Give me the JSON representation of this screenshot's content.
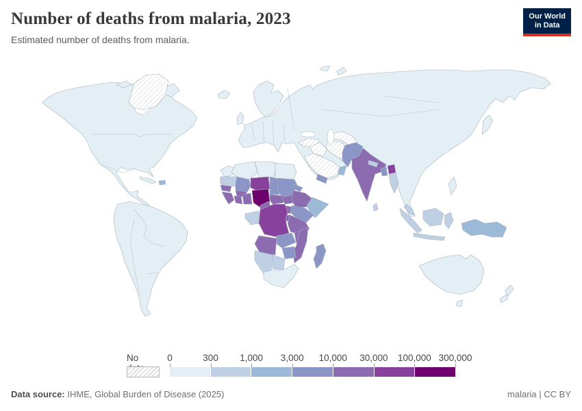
{
  "header": {
    "title": "Number of deaths from malaria, 2023",
    "subtitle": "Estimated number of deaths from malaria.",
    "logo": {
      "line1": "Our World",
      "line2": "in Data",
      "bg_color": "#002147",
      "accent_color": "#d7301f"
    }
  },
  "chart_data": {
    "type": "choropleth",
    "title": "Number of deaths from malaria, 2023",
    "subtitle": "Estimated number of deaths from malaria.",
    "year": "2023",
    "legend": {
      "no_data_label": "No data",
      "bin_edge_labels": [
        "0",
        "300",
        "1,000",
        "3,000",
        "10,000",
        "30,000",
        "100,000",
        "300,000"
      ],
      "bin_colors": [
        "#e3eef5",
        "#c0d0e4",
        "#9db9d8",
        "#8c96c6",
        "#8c6bb1",
        "#88419d",
        "#6e016b"
      ],
      "no_data_fill": "hatched-white",
      "position": "bottom"
    },
    "regions": [
      {
        "id": "north-america",
        "bin": 1
      },
      {
        "id": "greenland",
        "bin": "nd"
      },
      {
        "id": "canadian-arctic-islands",
        "bin": 1
      },
      {
        "id": "cuba",
        "bin": 1
      },
      {
        "id": "haiti",
        "bin": 3
      },
      {
        "id": "south-america",
        "bin": 1
      },
      {
        "id": "iceland",
        "bin": 1
      },
      {
        "id": "united-kingdom",
        "bin": 1
      },
      {
        "id": "scandinavia",
        "bin": 1
      },
      {
        "id": "eurasia",
        "bin": 1
      },
      {
        "id": "svalbard",
        "bin": 1
      },
      {
        "id": "novaya-zemlya",
        "bin": 1
      },
      {
        "id": "japan",
        "bin": 1
      },
      {
        "id": "philippines",
        "bin": 1
      },
      {
        "id": "turkey",
        "bin": "nd"
      },
      {
        "id": "syria-iraq",
        "bin": "nd"
      },
      {
        "id": "iran",
        "bin": "nd"
      },
      {
        "id": "central-asia",
        "bin": "nd"
      },
      {
        "id": "saudi-arabia",
        "bin": "nd"
      },
      {
        "id": "oman",
        "bin": 3
      },
      {
        "id": "yemen",
        "bin": 4
      },
      {
        "id": "pakistan",
        "bin": 4
      },
      {
        "id": "india",
        "bin": 5
      },
      {
        "id": "nepal",
        "bin": 2
      },
      {
        "id": "bangladesh",
        "bin": 4
      },
      {
        "id": "myanmar-north",
        "bin": 6
      },
      {
        "id": "myanmar",
        "bin": 2
      },
      {
        "id": "sri-lanka",
        "bin": 2
      },
      {
        "id": "malaysia",
        "bin": 2
      },
      {
        "id": "sumatra",
        "bin": 2
      },
      {
        "id": "java",
        "bin": 2
      },
      {
        "id": "borneo",
        "bin": 2
      },
      {
        "id": "sulawesi",
        "bin": 2
      },
      {
        "id": "west-papua",
        "bin": 3
      },
      {
        "id": "papua-new-guinea",
        "bin": 3
      },
      {
        "id": "australia",
        "bin": 1
      },
      {
        "id": "tasmania",
        "bin": 1
      },
      {
        "id": "new-zealand",
        "bin": 1
      },
      {
        "id": "morocco",
        "bin": 1
      },
      {
        "id": "western-sahara",
        "bin": 1
      },
      {
        "id": "algeria",
        "bin": 1
      },
      {
        "id": "libya",
        "bin": 1
      },
      {
        "id": "egypt",
        "bin": 1
      },
      {
        "id": "mauritania",
        "bin": 2
      },
      {
        "id": "mali",
        "bin": 4
      },
      {
        "id": "niger",
        "bin": 6
      },
      {
        "id": "chad",
        "bin": 4
      },
      {
        "id": "sudan",
        "bin": 4
      },
      {
        "id": "eritrea",
        "bin": 4
      },
      {
        "id": "senegal",
        "bin": 5
      },
      {
        "id": "guinea",
        "bin": 5
      },
      {
        "id": "ivory-coast",
        "bin": 5
      },
      {
        "id": "burkina-faso",
        "bin": 5
      },
      {
        "id": "ghana-togo-benin",
        "bin": 5
      },
      {
        "id": "nigeria",
        "bin": 7
      },
      {
        "id": "cameroon",
        "bin": 5
      },
      {
        "id": "central-african-republic",
        "bin": 5
      },
      {
        "id": "south-sudan",
        "bin": 5
      },
      {
        "id": "ethiopia",
        "bin": 5
      },
      {
        "id": "somalia",
        "bin": 3
      },
      {
        "id": "uganda",
        "bin": 5
      },
      {
        "id": "kenya",
        "bin": 4
      },
      {
        "id": "congo-gabon",
        "bin": 2
      },
      {
        "id": "dr-congo",
        "bin": 6
      },
      {
        "id": "rwanda-burundi",
        "bin": 5
      },
      {
        "id": "tanzania",
        "bin": 5
      },
      {
        "id": "angola",
        "bin": 5
      },
      {
        "id": "zambia",
        "bin": 4
      },
      {
        "id": "malawi",
        "bin": 5
      },
      {
        "id": "mozambique",
        "bin": 5
      },
      {
        "id": "zimbabwe",
        "bin": 4
      },
      {
        "id": "botswana",
        "bin": 2
      },
      {
        "id": "namibia",
        "bin": 2
      },
      {
        "id": "south-africa",
        "bin": 1
      },
      {
        "id": "madagascar",
        "bin": 4
      }
    ]
  },
  "footer": {
    "source_label": "Data source:",
    "source_text": " IHME, Global Burden of Disease (2025)",
    "right_text": "malaria | CC BY"
  }
}
